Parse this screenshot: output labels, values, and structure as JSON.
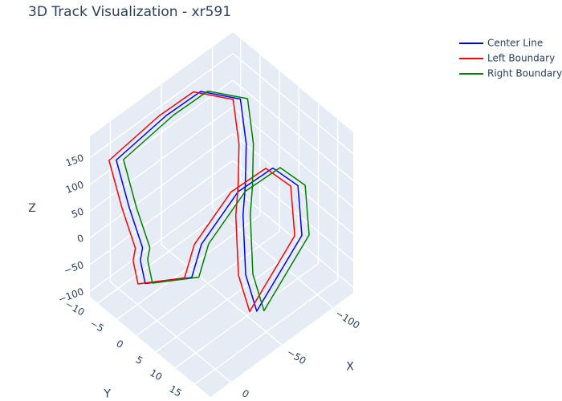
{
  "chart_data": {
    "type": "line3d",
    "title": "3D Track Visualization - xr591",
    "x_label": "X",
    "y_label": "Y",
    "z_label": "Z",
    "xlim": [
      -120,
      20
    ],
    "ylim": [
      -12,
      19
    ],
    "zlim": [
      -110,
      190
    ],
    "xticks": [
      {
        "value": -100,
        "label": "−100"
      },
      {
        "value": -50,
        "label": "−50"
      },
      0
    ],
    "yticks": [
      {
        "value": -10,
        "label": "−10"
      },
      {
        "value": -5,
        "label": "−5"
      },
      0,
      5,
      10,
      15
    ],
    "zticks": [
      {
        "value": -100,
        "label": "−100"
      },
      {
        "value": -50,
        "label": "−50"
      },
      0,
      50,
      100,
      150
    ],
    "grid": true,
    "legend": "top-right",
    "series": [
      {
        "name": "Center Line",
        "color": "#0000ff",
        "x": [
          6,
          -8,
          -1,
          6,
          -43,
          -71,
          -92,
          -92,
          -85,
          -71,
          -50,
          -43,
          -99,
          -113,
          -106,
          -78,
          -36,
          -15,
          13,
          6
        ],
        "y": [
          -2.7,
          -5.8,
          -7.4,
          -8.9,
          -8.9,
          -7.4,
          -2.7,
          -1.2,
          0.4,
          3.5,
          9.7,
          14.4,
          11.3,
          6.6,
          2,
          0.4,
          2,
          5,
          0.4,
          -2.7
        ],
        "z": [
          -5,
          -20,
          55,
          145,
          160,
          175,
          160,
          85,
          25,
          10,
          -35,
          -65,
          -20,
          25,
          40,
          25,
          -5,
          -20,
          -20,
          -5
        ]
      },
      {
        "name": "Left Boundary",
        "color": "#ff0000",
        "x": [
          10,
          -4,
          3,
          10,
          -39,
          -67,
          -88,
          -88,
          -81,
          -67,
          -46,
          -39,
          -95,
          -109,
          -102,
          -74,
          -32,
          -11,
          17,
          10
        ],
        "y": [
          -3.5,
          -6.6,
          -8.2,
          -9.7,
          -9.7,
          -8.2,
          -3.5,
          -2,
          -0.4,
          2.7,
          8.9,
          13.6,
          10.5,
          5.8,
          1.2,
          -0.4,
          1.2,
          4.2,
          -0.4,
          -3.5
        ],
        "z": [
          -5,
          -20,
          55,
          145,
          160,
          175,
          160,
          85,
          25,
          10,
          -35,
          -65,
          -20,
          25,
          40,
          25,
          -5,
          -20,
          -20,
          -5
        ]
      },
      {
        "name": "Right Boundary",
        "color": "#008000",
        "x": [
          2,
          -12,
          -5,
          2,
          -47,
          -75,
          -96,
          -96,
          -89,
          -75,
          -54,
          -47,
          -103,
          -117,
          -110,
          -82,
          -40,
          -19,
          9,
          2
        ],
        "y": [
          -1.9,
          -5,
          -6.6,
          -8.1,
          -8.1,
          -6.6,
          -1.9,
          -0.4,
          1.2,
          4.3,
          10.5,
          15.2,
          12.1,
          7.4,
          2.8,
          1.2,
          2.8,
          5.8,
          1.2,
          -1.9
        ],
        "z": [
          -5,
          -20,
          55,
          145,
          160,
          175,
          160,
          85,
          25,
          10,
          -35,
          -65,
          -20,
          25,
          40,
          25,
          -5,
          -20,
          -20,
          -5
        ]
      }
    ]
  }
}
